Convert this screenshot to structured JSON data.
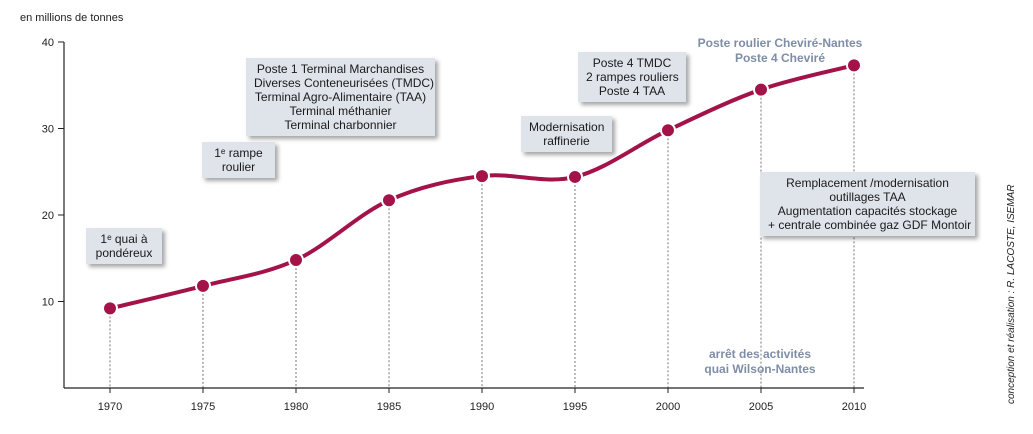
{
  "chart_data": {
    "type": "line",
    "ylabel": "en millions de tonnes",
    "ylim": [
      0,
      40
    ],
    "yticks": [
      10,
      20,
      30,
      40
    ],
    "x": [
      "1970",
      "1975",
      "1980",
      "1985",
      "1990",
      "1995",
      "2000",
      "2005",
      "2010"
    ],
    "series": [
      {
        "values": [
          9.2,
          11.8,
          14.8,
          21.7,
          24.5,
          24.4,
          29.8,
          34.5,
          37.3
        ]
      }
    ],
    "line_color": "#a3134a",
    "marker_color": "#a3134a",
    "annotations": {
      "a1970": [
        "1ᵉ quai à",
        "pondéreux"
      ],
      "a1980": [
        "1ᵉ rampe",
        "roulier"
      ],
      "a1985": [
        "Poste 1 Terminal Marchandises",
        "Diverses Conteneurisées (TMDC)",
        "Terminal Agro-Alimentaire (TAA)",
        "Terminal méthanier",
        "Terminal charbonnier"
      ],
      "a1995": [
        "Modernisation",
        "raffinerie"
      ],
      "a2000": [
        "Poste 4 TMDC",
        "2 rampes rouliers",
        "Poste 4 TAA"
      ],
      "a2010_top": [
        "Poste roulier Cheviré-Nantes",
        "Poste 4 Cheviré"
      ],
      "a2010_box": [
        "Remplacement /modernisation",
        "outillages TAA",
        "Augmentation capacités stockage",
        "+ centrale combinée gaz GDF Montoir"
      ],
      "a2005_bottom": [
        "arrêt des activités",
        "quai Wilson-Nantes"
      ]
    },
    "credit": "conception et réalisation : R. LACOSTE, ISEMAR"
  }
}
